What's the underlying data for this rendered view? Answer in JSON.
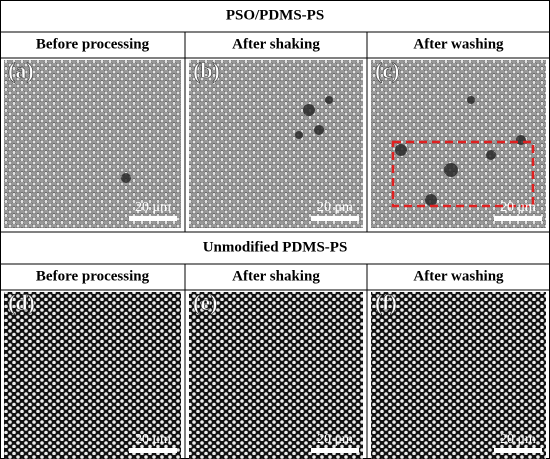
{
  "sections": [
    {
      "title": "PSO/PDMS-PS",
      "columns": [
        "Before processing",
        "After shaking",
        "After washing"
      ],
      "panels": [
        {
          "label": "(a)",
          "scale_bar": "20 μm"
        },
        {
          "label": "(b)",
          "scale_bar": "20 μm"
        },
        {
          "label": "(c)",
          "scale_bar": "20 μm"
        }
      ]
    },
    {
      "title": "Unmodified PDMS-PS",
      "columns": [
        "Before processing",
        "After shaking",
        "After washing"
      ],
      "panels": [
        {
          "label": "(d)",
          "scale_bar": "20 μm"
        },
        {
          "label": "(e)",
          "scale_bar": "20 μm"
        },
        {
          "label": "(f)",
          "scale_bar": "20 μm"
        }
      ]
    }
  ]
}
